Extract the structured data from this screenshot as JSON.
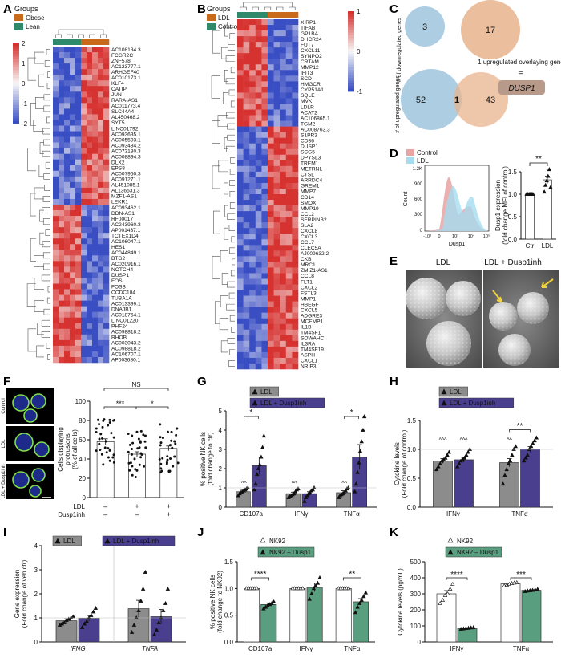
{
  "panel_letters": [
    "A",
    "B",
    "C",
    "D",
    "E",
    "F",
    "G",
    "H",
    "I",
    "J",
    "K"
  ],
  "panelA": {
    "legend_title": "Groups",
    "groups": [
      {
        "name": "Obese",
        "color": "#c96a1b"
      },
      {
        "name": "Lean",
        "color": "#2f8a6b"
      }
    ],
    "scale_ticks": [
      "2",
      "1",
      "0",
      "-1",
      "-2"
    ],
    "genes": [
      "AC108134.3",
      "FCGR2C",
      "ZNF578",
      "AC123777.1",
      "ARHGEF40",
      "AC010173.1",
      "KLF4",
      "CATIP",
      "JUN",
      "RARA-AS1",
      "AC011773.4",
      "SLC44A4",
      "AL450468.2",
      "SYT5",
      "LINC01792",
      "AC093635.1",
      "AC005593.1",
      "AC093484.2",
      "AC073130.3",
      "AC008894.3",
      "DLX2",
      "EPS8",
      "AC007950.3",
      "AC091271.1",
      "AL451085.1",
      "AL136531.3",
      "MZF1-AS1",
      "LEKR1",
      "AC093462.1",
      "DDN-AS1",
      "RF00017",
      "AC243960.3",
      "AP001437.1",
      "TCTEX1D4",
      "AC106047.1",
      "HES1",
      "AC044849.1",
      "BTG2",
      "AC020916.1",
      "NOTCH4",
      "DUSP1",
      "FOS",
      "FOSB",
      "CCDC184",
      "TUBA1A",
      "AC013399.1",
      "DNAJB1",
      "AC018754.1",
      "LINC01220",
      "PHF24",
      "AC098818.2",
      "RHOB",
      "AC003043.2",
      "AC098818.2",
      "AC106707.1",
      "AP003680.1"
    ]
  },
  "panelB": {
    "legend_title": "Groups",
    "groups": [
      {
        "name": "LDL",
        "color": "#c96a1b"
      },
      {
        "name": "Control",
        "color": "#2f8a6b"
      }
    ],
    "scale_ticks": [
      "1",
      "0",
      "-1"
    ],
    "genes": [
      "XIRP1",
      "TIFAB",
      "GP1BA",
      "DHCR24",
      "FUT7",
      "CXCL11",
      "SYNPO2",
      "CRTAM",
      "MMP12",
      "IFIT3",
      "SCD",
      "HMGCR",
      "CYP51A1",
      "SQLE",
      "MVK",
      "LDLR",
      "ACAT2",
      "AC106865.1",
      "TGM2",
      "AC008763.3",
      "S1PR3",
      "CD36",
      "DUSP1",
      "SCG5",
      "DPYSL3",
      "TREM1",
      "METRNL",
      "CTSL",
      "ARRDC4",
      "GREM1",
      "MMP7",
      "CD14",
      "SMOX",
      "MMP19",
      "CCL2",
      "SERPINB2",
      "SLA2",
      "CXCL8",
      "CXCL3",
      "CCL7",
      "CLEC5A",
      "AJ009632.2",
      "CKB",
      "MRC1",
      "ZMIZ1-AS1",
      "CCL8",
      "FLT1",
      "CXCL2",
      "FSTL3",
      "MMP1",
      "HBEGF",
      "CXCL5",
      "ADGRE3",
      "MCEMP1",
      "IL1B",
      "TM4SF1",
      "SOWAHC",
      "IL3RA",
      "TM4SF19",
      "ASPH",
      "CXCL1",
      "NRIP3"
    ]
  },
  "panelC": {
    "top_left_count": "3",
    "top_right_count": "17",
    "top_axis_label": "# of downregulated genes",
    "bottom_left_count": "52",
    "bottom_overlap_count": "1",
    "bottom_right_count": "43",
    "bottom_axis_label": "# of upregulated genes",
    "note": "1 upregulated overlaying gene",
    "equals": "=",
    "gene": "DUSP1"
  },
  "panelD": {
    "legend": [
      {
        "name": "Control",
        "color": "#e8a3a3"
      },
      {
        "name": "LDL",
        "color": "#a6dcef"
      }
    ],
    "hist_ylabel": "Count",
    "hist_yticks": [
      "1.2K",
      "900",
      "600",
      "300",
      "0"
    ],
    "hist_xlabel": "Dusp1",
    "hist_xticks": [
      "-10³",
      "0",
      "10³",
      "10⁴",
      "10⁵"
    ],
    "bar_ylabel_1": "Dusp1 expression",
    "bar_ylabel_2": "(fold change MFI of control)",
    "bar_yticks": [
      "1.5",
      "1.0",
      "0.5",
      "0.0"
    ],
    "significance": "**"
  },
  "panelE": {
    "left_title": "LDL",
    "right_title": "LDL + Dusp1inh"
  },
  "panelF": {
    "image_labels": [
      "Control",
      "LDL",
      "LDL + Dusp1inh"
    ],
    "ylabel_1": "Cells displaying",
    "ylabel_2": "protrusions",
    "ylabel_3": "(% of all cells)",
    "yticks": [
      "100",
      "80",
      "60",
      "40",
      "20",
      "0"
    ],
    "row_labels": [
      "LDL",
      "Dusp1inh"
    ],
    "row_signs": [
      [
        "–",
        "+",
        "+"
      ],
      [
        "–",
        "–",
        "+"
      ]
    ],
    "significance": [
      "NS",
      "***",
      "*"
    ]
  },
  "panelG": {
    "legend": [
      {
        "name": "LDL",
        "color": "#8c8c8c"
      },
      {
        "name": "LDL + Dusp1inh",
        "color": "#4a3f8f"
      }
    ],
    "ylabel_1": "% positive NK cells",
    "ylabel_2": "(fold change to ctr)",
    "yticks": [
      "5",
      "4",
      "3",
      "2",
      "1",
      "0"
    ],
    "markers": [
      "^^",
      "^^",
      "^^"
    ],
    "significance": [
      "*",
      "*"
    ]
  },
  "panelH": {
    "legend": [
      {
        "name": "LDL",
        "color": "#8c8c8c"
      },
      {
        "name": "LDL + Dusp1inh",
        "color": "#4a3f8f"
      }
    ],
    "ylabel_1": "Cytokine levels",
    "ylabel_2": "(Fold change of control)",
    "yticks": [
      "1.5",
      "1.0",
      "0.5",
      "0.0"
    ],
    "markers": [
      "^^^",
      "^^^",
      "^^"
    ],
    "significance": [
      "**"
    ]
  },
  "panelI": {
    "legend": [
      {
        "name": "LDL",
        "color": "#8c8c8c"
      },
      {
        "name": "LDL + Dusp1inh",
        "color": "#4a3f8f"
      }
    ],
    "ylabel_1": "Gene expression",
    "ylabel_2": "(Fold change of veh ctr)",
    "yticks": [
      "4",
      "3",
      "2",
      "1",
      "0"
    ]
  },
  "panelJ": {
    "legend": [
      {
        "name": "NK92",
        "color": "#ffffff"
      },
      {
        "name": "NK92 – Dusp1",
        "color": "#5a9e80"
      }
    ],
    "ylabel_1": "% positive NK cells",
    "ylabel_2": "(fold change to NK92)",
    "yticks": [
      "1.5",
      "1.0",
      "0.5",
      "0.0"
    ],
    "significance": [
      "****",
      "**"
    ]
  },
  "panelK": {
    "legend": [
      {
        "name": "NK92",
        "color": "#ffffff"
      },
      {
        "name": "NK92 – Dusp1",
        "color": "#5a9e80"
      }
    ],
    "ylabel": "Cytokine levels (pg/mL)",
    "yticks": [
      "500",
      "400",
      "300",
      "200",
      "100",
      "0"
    ],
    "significance": [
      "****",
      "***"
    ]
  },
  "chart_data": [
    {
      "panel": "D",
      "type": "bar",
      "categories": [
        "Ctr",
        "LDL"
      ],
      "values": [
        1.0,
        1.32
      ],
      "errors": [
        0.01,
        0.08
      ],
      "points": [
        [
          1.0,
          1.0,
          1.0,
          1.0,
          1.0,
          1.0
        ],
        [
          1.05,
          1.2,
          1.3,
          1.4,
          1.55,
          1.15
        ]
      ],
      "ylim": [
        0,
        1.5
      ]
    },
    {
      "panel": "F",
      "type": "bar",
      "categories": [
        "Control",
        "LDL",
        "LDL + Dusp1inh"
      ],
      "values": [
        58,
        45,
        51
      ],
      "errors": [
        3,
        2.5,
        2.5
      ],
      "ylim": [
        0,
        100
      ]
    },
    {
      "panel": "G",
      "type": "bar",
      "categories": [
        "CD107a",
        "IFNγ",
        "TNFα"
      ],
      "series": [
        {
          "name": "LDL",
          "values": [
            0.8,
            0.7,
            0.75
          ],
          "errors": [
            0.08,
            0.08,
            0.1
          ],
          "points": [
            [
              0.6,
              0.7,
              0.75,
              0.8,
              0.85,
              0.9,
              0.95,
              1.0
            ],
            [
              0.5,
              0.55,
              0.6,
              0.65,
              0.7,
              0.8,
              0.9,
              0.95
            ],
            [
              0.5,
              0.6,
              0.65,
              0.7,
              0.75,
              0.85,
              0.95,
              1.0
            ]
          ]
        },
        {
          "name": "LDL + Dusp1inh",
          "values": [
            2.15,
            0.7,
            2.6
          ],
          "errors": [
            0.45,
            0.1,
            0.65
          ],
          "points": [
            [
              0.9,
              1.2,
              1.7,
              2.0,
              2.2,
              2.6,
              3.1,
              3.7
            ],
            [
              0.3,
              0.5,
              0.6,
              0.7,
              0.75,
              0.85,
              0.9,
              1.0
            ],
            [
              0.8,
              1.2,
              1.8,
              2.3,
              2.9,
              3.4,
              4.0,
              4.7
            ]
          ]
        }
      ],
      "ylim": [
        0,
        5
      ]
    },
    {
      "panel": "H",
      "type": "bar",
      "categories": [
        "IFNγ",
        "TNFα"
      ],
      "series": [
        {
          "name": "LDL",
          "values": [
            0.8,
            0.77
          ],
          "errors": [
            0.04,
            0.07
          ],
          "points": [
            [
              0.65,
              0.7,
              0.75,
              0.8,
              0.82,
              0.85,
              0.9,
              0.95
            ],
            [
              0.4,
              0.55,
              0.65,
              0.75,
              0.8,
              0.9,
              1.0,
              1.05
            ]
          ]
        },
        {
          "name": "LDL + Dusp1inh",
          "values": [
            0.82,
            1.0
          ],
          "errors": [
            0.04,
            0.05
          ],
          "points": [
            [
              0.7,
              0.75,
              0.8,
              0.82,
              0.85,
              0.9,
              0.95,
              1.0
            ],
            [
              0.8,
              0.85,
              0.9,
              1.0,
              1.05,
              1.1,
              1.15,
              1.2
            ]
          ]
        }
      ],
      "ylim": [
        0,
        1.5
      ]
    },
    {
      "panel": "I",
      "type": "bar",
      "categories": [
        "IFNG",
        "TNFA"
      ],
      "series": [
        {
          "name": "LDL",
          "values": [
            0.88,
            1.38
          ],
          "errors": [
            0.08,
            0.35
          ],
          "points": [
            [
              0.7,
              0.75,
              0.8,
              0.9,
              0.95,
              1.0,
              1.05
            ],
            [
              0.4,
              0.7,
              1.0,
              1.3,
              1.7,
              2.2,
              2.9
            ]
          ]
        },
        {
          "name": "LDL + Dusp1inh",
          "values": [
            0.98,
            1.05
          ],
          "errors": [
            0.12,
            0.3
          ],
          "points": [
            [
              0.6,
              0.75,
              0.85,
              1.0,
              1.1,
              1.25,
              1.4
            ],
            [
              0.3,
              0.5,
              0.8,
              1.0,
              1.3,
              1.6,
              2.2
            ]
          ]
        }
      ],
      "ylim": [
        0,
        4
      ]
    },
    {
      "panel": "J",
      "type": "bar",
      "categories": [
        "CD107a",
        "IFNγ",
        "TNFα"
      ],
      "series": [
        {
          "name": "NK92",
          "values": [
            1.0,
            1.0,
            1.0
          ],
          "errors": [
            0.01,
            0.01,
            0.01
          ],
          "points": [
            [
              1.0,
              1.0,
              1.0,
              1.0,
              1.0,
              1.0
            ],
            [
              1.0,
              1.0,
              1.0,
              1.0,
              1.0,
              1.0
            ],
            [
              1.0,
              1.0,
              1.0,
              1.0,
              1.0,
              1.0
            ]
          ]
        },
        {
          "name": "NK92 – Dusp1",
          "values": [
            0.7,
            1.02,
            0.75
          ],
          "errors": [
            0.03,
            0.08,
            0.06
          ],
          "points": [
            [
              0.62,
              0.65,
              0.68,
              0.7,
              0.72,
              0.75
            ],
            [
              0.8,
              0.9,
              1.0,
              1.05,
              1.1,
              1.2
            ],
            [
              0.55,
              0.65,
              0.72,
              0.78,
              0.85,
              0.92
            ]
          ]
        }
      ],
      "ylim": [
        0,
        1.5
      ]
    },
    {
      "panel": "K",
      "type": "bar",
      "categories": [
        "IFNγ",
        "TNFα"
      ],
      "series": [
        {
          "name": "NK92",
          "values": [
            300,
            362
          ],
          "errors": [
            20,
            5
          ],
          "points": [
            [
              240,
              260,
              290,
              300,
              330,
              360
            ],
            [
              350,
              355,
              360,
              365,
              368,
              370
            ]
          ]
        },
        {
          "name": "NK92 – Dusp1",
          "values": [
            85,
            322
          ],
          "errors": [
            3,
            3
          ],
          "points": [
            [
              80,
              82,
              85,
              86,
              88,
              90
            ],
            [
              315,
              318,
              320,
              322,
              325,
              328
            ]
          ]
        }
      ],
      "ylim": [
        0,
        500
      ]
    }
  ]
}
